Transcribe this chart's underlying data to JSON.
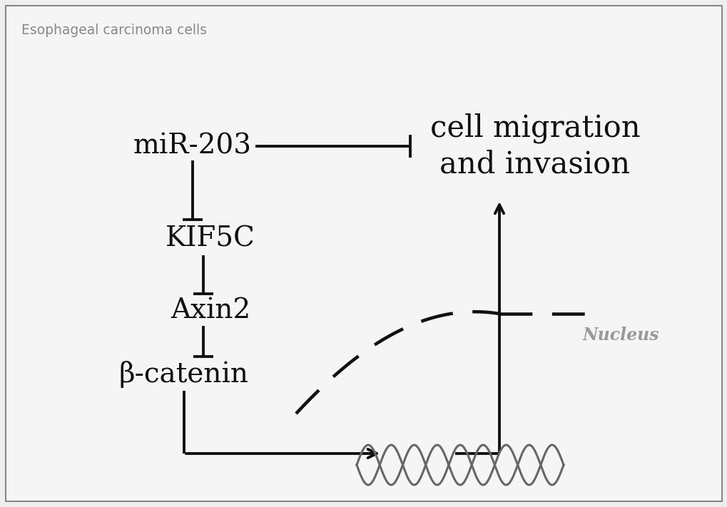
{
  "bg_color": "#eeeeee",
  "inner_bg_color": "#f5f5f5",
  "border_color": "#888888",
  "title_label": "Esophageal carcinoma cells",
  "title_color": "#888888",
  "title_fontsize": 13.5,
  "label_mir203": "miR-203",
  "label_kif5c": "KIF5C",
  "label_axin2": "Axin2",
  "label_bcatenin": "β-catenin",
  "label_cell_migration": "cell migration\nand invasion",
  "label_nucleus": "Nucleus",
  "nucleus_color": "#999999",
  "text_color": "#111111",
  "line_color": "#111111",
  "fontsize_main": 28,
  "fontsize_cell_migration": 30,
  "fontsize_nucleus": 17
}
